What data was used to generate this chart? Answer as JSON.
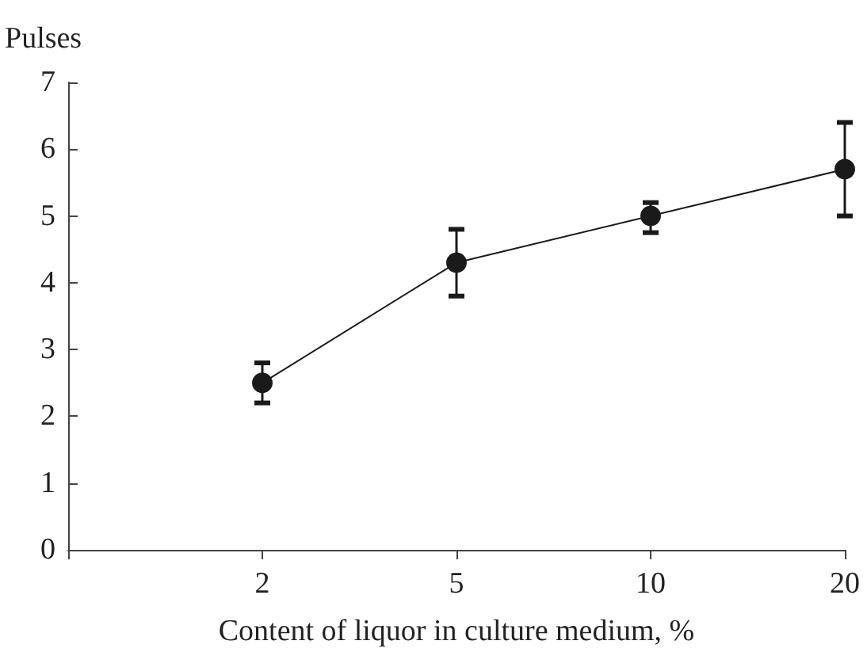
{
  "chart_data": {
    "type": "line",
    "xlabel": "Content of liquor in culture medium, %",
    "ylabel": "Pulses",
    "categories": [
      null,
      "2",
      "5",
      "10",
      "20"
    ],
    "series": [
      {
        "color": "#1a1a1a",
        "values": [
          null,
          2.5,
          4.3,
          5.0,
          5.7
        ],
        "errors": [
          null,
          [
            2.2,
            2.8
          ],
          [
            3.8,
            4.8
          ],
          [
            4.75,
            5.2
          ],
          [
            5.0,
            6.4
          ]
        ]
      }
    ],
    "ylim": [
      0,
      7
    ],
    "yticks": [
      0,
      1,
      2,
      3,
      4,
      5,
      6,
      7
    ],
    "grid": false,
    "marker": "circle",
    "line_style": "solid"
  }
}
